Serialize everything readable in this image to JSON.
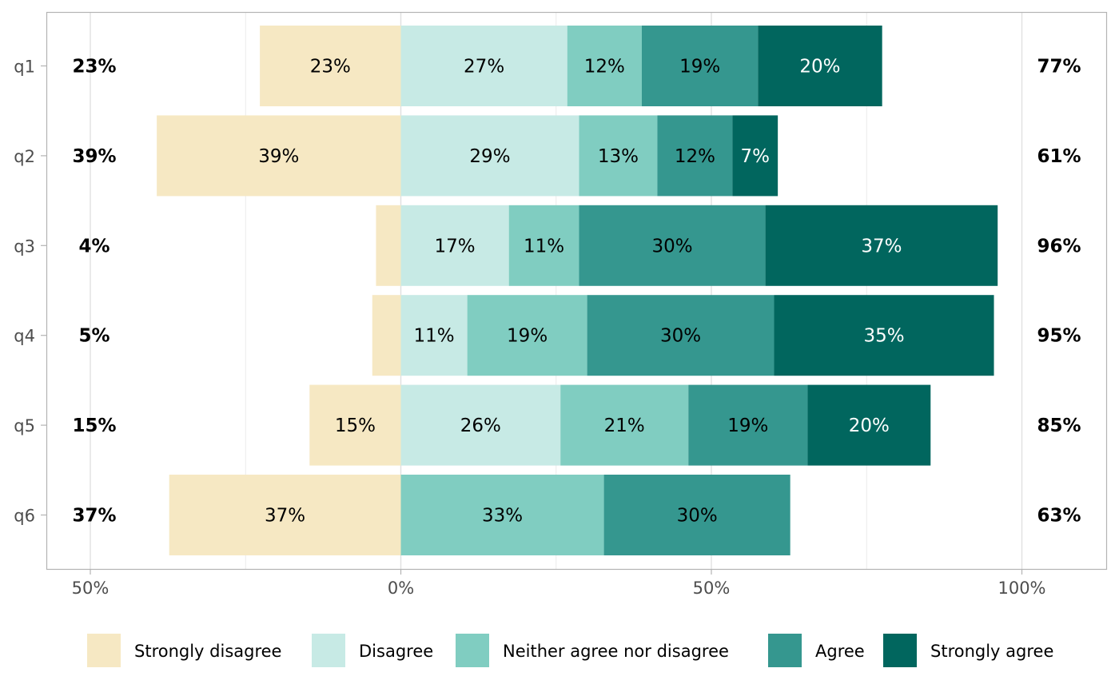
{
  "chart_data": {
    "type": "bar",
    "orientation": "horizontal",
    "stacked": "diverging",
    "title": "",
    "xlabel": "",
    "ylabel": "",
    "categories": [
      "q1",
      "q2",
      "q3",
      "q4",
      "q5",
      "q6"
    ],
    "xlim": [
      -57,
      113
    ],
    "x_ticks": [
      -50,
      0,
      50,
      100
    ],
    "x_tick_labels": [
      "50%",
      "0%",
      "50%",
      "100%"
    ],
    "x_minor_ticks": [
      -25,
      25,
      75
    ],
    "grid": true,
    "legend_position": "bottom",
    "series": [
      {
        "name": "Strongly disagree",
        "color": "#F6E8C3",
        "text_color": "#000000",
        "side": "negative",
        "values": [
          22.7,
          39.3,
          4.0,
          4.6,
          14.7,
          37.3
        ],
        "labels": [
          "23%",
          "39%",
          "",
          "",
          "15%",
          "37%"
        ]
      },
      {
        "name": "Disagree",
        "color": "#C7EAE5",
        "text_color": "#000000",
        "side": "positive",
        "values": [
          26.8,
          28.7,
          17.4,
          10.7,
          25.7,
          0
        ],
        "labels": [
          "27%",
          "29%",
          "17%",
          "11%",
          "26%",
          ""
        ]
      },
      {
        "name": "Neither agree nor disagree",
        "color": "#80CDC1",
        "text_color": "#000000",
        "side": "positive",
        "values": [
          12.0,
          12.6,
          11.3,
          19.3,
          20.6,
          32.7
        ],
        "labels": [
          "12%",
          "13%",
          "11%",
          "19%",
          "21%",
          "33%"
        ]
      },
      {
        "name": "Agree",
        "color": "#35978F",
        "text_color": "#000000",
        "side": "positive",
        "values": [
          18.7,
          12.1,
          30.0,
          30.1,
          19.2,
          30.0
        ],
        "labels": [
          "19%",
          "12%",
          "30%",
          "30%",
          "19%",
          "30%"
        ]
      },
      {
        "name": "Strongly agree",
        "color": "#01665E",
        "text_color": "#FFFFFF",
        "side": "positive",
        "values": [
          20.0,
          7.3,
          37.4,
          35.4,
          19.8,
          0
        ],
        "labels": [
          "20%",
          "7%",
          "37%",
          "35%",
          "20%",
          ""
        ]
      }
    ],
    "left_totals": [
      "23%",
      "39%",
      "4%",
      "5%",
      "15%",
      "37%"
    ],
    "right_totals": [
      "77%",
      "61%",
      "96%",
      "95%",
      "85%",
      "63%"
    ]
  }
}
